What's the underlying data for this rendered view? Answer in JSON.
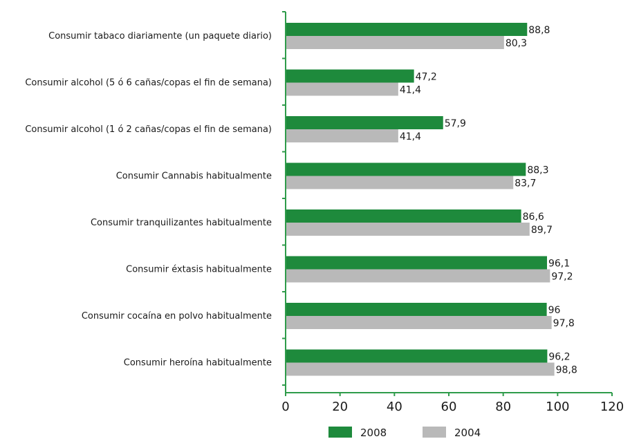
{
  "chart_data": {
    "type": "bar",
    "orientation": "horizontal",
    "categories": [
      "Consumir tabaco diariamente (un paquete diario)",
      "Consumir alcohol (5 ó 6 cañas/copas el fin de semana)",
      "Consumir alcohol (1 ó 2 cañas/copas el fin de semana)",
      "Consumir Cannabis habitualmente",
      "Consumir tranquilizantes habitualmente",
      "Consumir éxtasis habitualmente",
      "Consumir cocaína en polvo habitualmente",
      "Consumir heroína habitualmente"
    ],
    "series": [
      {
        "name": "2008",
        "color": "#1e8a3c",
        "values": [
          88.8,
          47.2,
          57.9,
          88.3,
          86.6,
          96.1,
          96,
          96.2
        ],
        "labels": [
          "88,8",
          "47,2",
          "57,9",
          "88,3",
          "86,6",
          "96,1",
          "96",
          "96,2"
        ]
      },
      {
        "name": "2004",
        "color": "#b9b9b9",
        "values": [
          80.3,
          41.4,
          41.4,
          83.7,
          89.7,
          97.2,
          97.8,
          98.8
        ],
        "labels": [
          "80,3",
          "41,4",
          "41,4",
          "83,7",
          "89,7",
          "97,2",
          "97,8",
          "98,8"
        ]
      }
    ],
    "xlim": [
      0,
      120
    ],
    "xticks": [
      "0",
      "20",
      "40",
      "60",
      "80",
      "100",
      "120"
    ],
    "axis_color": "#2e9b4a",
    "grid": false,
    "legend_position": "bottom"
  }
}
